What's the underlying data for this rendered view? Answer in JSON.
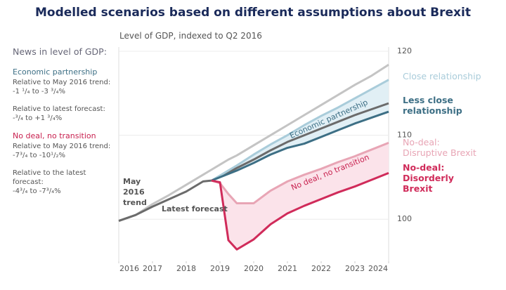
{
  "chart_data": {
    "type": "line",
    "title": "Modelled scenarios based on different assumptions about Brexit",
    "subtitle": "Level of GDP, indexed to Q2 2016",
    "x": [
      2016,
      2016.5,
      2017,
      2017.5,
      2018,
      2018.5,
      2018.75,
      2019,
      2019.25,
      2019.5,
      2020,
      2020.5,
      2021,
      2021.5,
      2022,
      2022.5,
      2023,
      2023.5,
      2024
    ],
    "xlim": [
      2016,
      2024
    ],
    "xticks": [
      2016,
      2017,
      2018,
      2019,
      2020,
      2021,
      2022,
      2023,
      2024
    ],
    "ylim": [
      95,
      120.5
    ],
    "yticks": [
      100,
      110,
      120
    ],
    "grid": true,
    "series": [
      {
        "name": "May 2016 trend",
        "color": "#c4c4c4",
        "values": [
          99.8,
          100.5,
          101.8,
          102.9,
          104.1,
          105.3,
          105.9,
          106.5,
          107.1,
          107.6,
          108.8,
          110.0,
          111.2,
          112.4,
          113.6,
          114.8,
          116.0,
          117.1,
          118.4
        ]
      },
      {
        "name": "Latest forecast",
        "color": "#6b6b6b",
        "values": [
          99.8,
          100.5,
          101.5,
          102.4,
          103.3,
          104.5,
          104.6,
          105.1,
          105.6,
          106.1,
          107.1,
          108.2,
          109.2,
          110.0,
          110.8,
          111.6,
          112.4,
          113.1,
          113.8
        ]
      },
      {
        "name": "Close relationship",
        "color": "#a9ccda",
        "values": [
          null,
          null,
          null,
          null,
          null,
          null,
          104.6,
          105.2,
          105.8,
          106.4,
          107.7,
          108.9,
          110.0,
          111.2,
          112.3,
          113.3,
          114.4,
          115.5,
          116.6
        ]
      },
      {
        "name": "Less close relationship",
        "color": "#3d6f85",
        "values": [
          null,
          null,
          null,
          null,
          null,
          null,
          104.6,
          105.0,
          105.4,
          105.8,
          106.7,
          107.7,
          108.5,
          109.0,
          109.8,
          110.6,
          111.4,
          112.1,
          112.8
        ]
      },
      {
        "name": "No-deal: Disruptive Brexit",
        "color": "#e8a5b5",
        "values": [
          null,
          null,
          null,
          null,
          null,
          null,
          104.6,
          104.3,
          103.0,
          101.9,
          101.9,
          103.4,
          104.5,
          105.3,
          106.0,
          106.8,
          107.5,
          108.3,
          109.1
        ]
      },
      {
        "name": "No-deal: Disorderly Brexit",
        "color": "#d02b5a",
        "values": [
          null,
          null,
          null,
          null,
          null,
          null,
          104.6,
          104.4,
          97.5,
          96.4,
          97.6,
          99.4,
          100.7,
          101.6,
          102.4,
          103.2,
          103.9,
          104.7,
          105.5
        ]
      }
    ],
    "annotations": [
      "Economic partnership",
      "No deal, no transition"
    ]
  },
  "side_panel": {
    "heading": "News in level of GDP:",
    "sections": [
      {
        "title": "Economic partnership",
        "color": "#3d6f85",
        "items": [
          {
            "label": "Relative to May 2016 trend:",
            "value": "-1 ¹/₄ to -3 ³/₄%"
          },
          {
            "label": "Relative to latest forecast:",
            "value": "-³/₄ to +1 ³/₄%"
          }
        ]
      },
      {
        "title": "No deal, no transition",
        "color": "#c8214f",
        "items": [
          {
            "label": "Relative to May 2016 trend:",
            "value": "-7³/₄ to -10¹/₂%"
          },
          {
            "label": "Relative to the latest forecast:",
            "value": "-4³/₄ to -7³/₄%"
          }
        ]
      }
    ]
  }
}
